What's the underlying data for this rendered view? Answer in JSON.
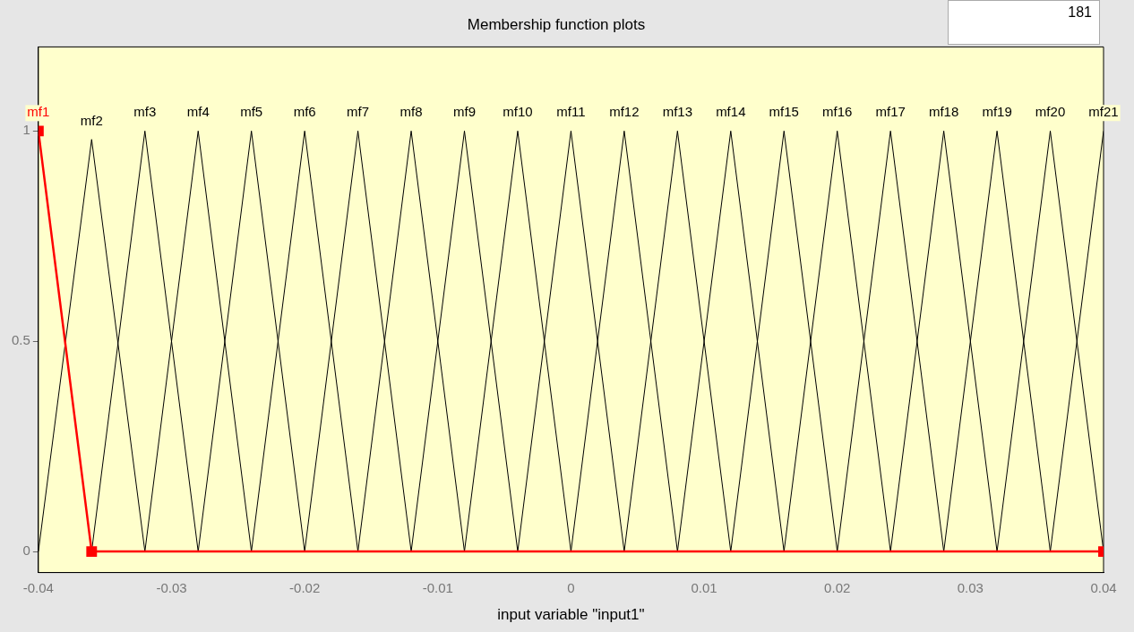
{
  "chart_data": {
    "type": "line",
    "title": "Membership function plots",
    "xlabel": "input variable \"input1\"",
    "annotations": [
      "181"
    ],
    "xlim": [
      -0.04,
      0.04
    ],
    "xticks": [
      -0.04,
      -0.03,
      -0.02,
      -0.01,
      0,
      0.01,
      0.02,
      0.03,
      0.04
    ],
    "ylim": [
      -0.05,
      1.2
    ],
    "yticks": [
      0,
      0.5,
      1
    ],
    "grid": false,
    "legend": false,
    "series": [
      {
        "name": "mf1",
        "color": "#ff0000",
        "marker": "square",
        "x": [
          -0.04,
          -0.036,
          0.04
        ],
        "values": [
          1,
          0,
          0
        ]
      },
      {
        "name": "mf2",
        "color": "#000000",
        "x": [
          -0.04,
          -0.036,
          -0.032
        ],
        "values": [
          0,
          0.98,
          0
        ]
      },
      {
        "name": "mf3",
        "color": "#000000",
        "x": [
          -0.036,
          -0.032,
          -0.028
        ],
        "values": [
          0,
          1,
          0
        ]
      },
      {
        "name": "mf4",
        "color": "#000000",
        "x": [
          -0.032,
          -0.028,
          -0.024
        ],
        "values": [
          0,
          1,
          0
        ]
      },
      {
        "name": "mf5",
        "color": "#000000",
        "x": [
          -0.028,
          -0.024,
          -0.02
        ],
        "values": [
          0,
          1,
          0
        ]
      },
      {
        "name": "mf6",
        "color": "#000000",
        "x": [
          -0.024,
          -0.02,
          -0.016
        ],
        "values": [
          0,
          1,
          0
        ]
      },
      {
        "name": "mf7",
        "color": "#000000",
        "x": [
          -0.02,
          -0.016,
          -0.012
        ],
        "values": [
          0,
          1,
          0
        ]
      },
      {
        "name": "mf8",
        "color": "#000000",
        "x": [
          -0.016,
          -0.012,
          -0.008
        ],
        "values": [
          0,
          1,
          0
        ]
      },
      {
        "name": "mf9",
        "color": "#000000",
        "x": [
          -0.012,
          -0.008,
          -0.004
        ],
        "values": [
          0,
          1,
          0
        ]
      },
      {
        "name": "mf10",
        "color": "#000000",
        "x": [
          -0.008,
          -0.004,
          0
        ],
        "values": [
          0,
          1,
          0
        ]
      },
      {
        "name": "mf11",
        "color": "#000000",
        "x": [
          -0.004,
          0,
          0.004
        ],
        "values": [
          0,
          1,
          0
        ]
      },
      {
        "name": "mf12",
        "color": "#000000",
        "x": [
          0,
          0.004,
          0.008
        ],
        "values": [
          0,
          1,
          0
        ]
      },
      {
        "name": "mf13",
        "color": "#000000",
        "x": [
          0.004,
          0.008,
          0.012
        ],
        "values": [
          0,
          1,
          0
        ]
      },
      {
        "name": "mf14",
        "color": "#000000",
        "x": [
          0.008,
          0.012,
          0.016
        ],
        "values": [
          0,
          1,
          0
        ]
      },
      {
        "name": "mf15",
        "color": "#000000",
        "x": [
          0.012,
          0.016,
          0.02
        ],
        "values": [
          0,
          1,
          0
        ]
      },
      {
        "name": "mf16",
        "color": "#000000",
        "x": [
          0.016,
          0.02,
          0.024
        ],
        "values": [
          0,
          1,
          0
        ]
      },
      {
        "name": "mf17",
        "color": "#000000",
        "x": [
          0.02,
          0.024,
          0.028
        ],
        "values": [
          0,
          1,
          0
        ]
      },
      {
        "name": "mf18",
        "color": "#000000",
        "x": [
          0.024,
          0.028,
          0.032
        ],
        "values": [
          0,
          1,
          0
        ]
      },
      {
        "name": "mf19",
        "color": "#000000",
        "x": [
          0.028,
          0.032,
          0.036
        ],
        "values": [
          0,
          1,
          0
        ]
      },
      {
        "name": "mf20",
        "color": "#000000",
        "x": [
          0.032,
          0.036,
          0.04
        ],
        "values": [
          0,
          1,
          0
        ]
      },
      {
        "name": "mf21",
        "color": "#000000",
        "x": [
          0.036,
          0.04
        ],
        "values": [
          0,
          1
        ]
      }
    ]
  }
}
